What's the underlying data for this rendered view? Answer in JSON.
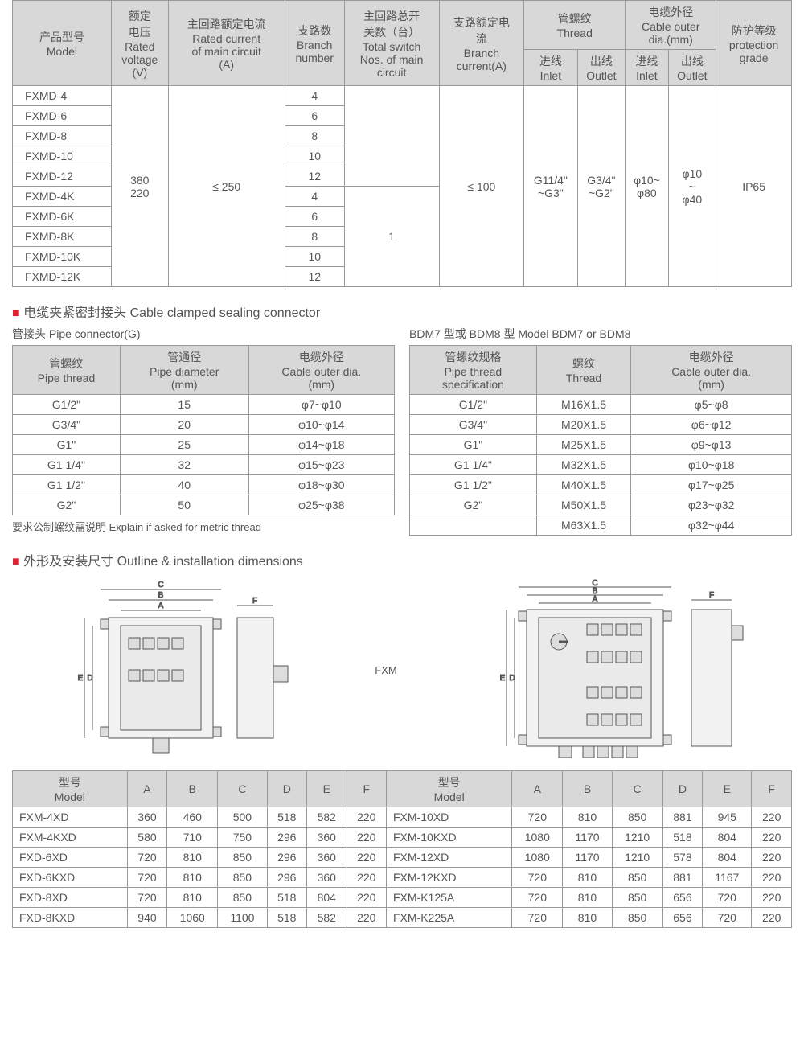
{
  "table1": {
    "headers": {
      "model": "产品型号\nModel",
      "voltage": "额定\n电压\nRated\nvoltage\n(V)",
      "main_current": "主回路额定电流\nRated current\nof main circuit\n(A)",
      "branch_num": "支路数\nBranch\nnumber",
      "total_switch": "主回路总开\n关数（台）\nTotal switch\nNos. of main\ncircuit",
      "branch_current": "支路额定电\n流\nBranch\ncurrent(A)",
      "thread": "管螺纹\nThread",
      "thread_inlet": "进线\nInlet",
      "thread_outlet": "出线\nOutlet",
      "cable": "电缆外径\nCable outer\ndia.(mm)",
      "cable_inlet": "进线\nInlet",
      "cable_outlet": "出线\nOutlet",
      "protection": "防护等级\nprotection\ngrade"
    },
    "models": [
      "FXMD-4",
      "FXMD-6",
      "FXMD-8",
      "FXMD-10",
      "FXMD-12",
      "FXMD-4K",
      "FXMD-6K",
      "FXMD-8K",
      "FXMD-10K",
      "FXMD-12K"
    ],
    "branches": [
      "4",
      "6",
      "8",
      "10",
      "12",
      "4",
      "6",
      "8",
      "10",
      "12"
    ],
    "voltage": "380\n220",
    "main_current": "≤ 250",
    "branch_current": "≤ 100",
    "thread_inlet": "G11/4\"\n~G3\"",
    "thread_outlet": "G3/4\"\n~G2\"",
    "cable_inlet": "φ10~\nφ80",
    "cable_outlet": "φ10\n~\nφ40",
    "protection": "IP65",
    "total_switch": "1"
  },
  "section_cable": "电缆夹紧密封接头 Cable clamped sealing connector",
  "pipe_title": "管接头 Pipe connector(G)",
  "bdm_title": "BDM7 型或 BDM8 型   Model BDM7 or BDM8",
  "pipe": {
    "h1": "管螺纹\nPipe thread",
    "h2": "管通径\nPipe diameter\n(mm)",
    "h3": "电缆外径\nCable outer dia.\n(mm)",
    "rows": [
      [
        "G1/2\"",
        "15",
        "φ7~φ10"
      ],
      [
        "G3/4\"",
        "20",
        "φ10~φ14"
      ],
      [
        "G1\"",
        "25",
        "φ14~φ18"
      ],
      [
        "G1 1/4\"",
        "32",
        "φ15~φ23"
      ],
      [
        "G1 1/2\"",
        "40",
        "φ18~φ30"
      ],
      [
        "G2\"",
        "50",
        "φ25~φ38"
      ]
    ]
  },
  "bdm": {
    "h1": "管螺纹规格\nPipe thread\nspecification",
    "h2": "螺纹\nThread",
    "h3": "电缆外径\nCable outer dia.\n(mm)",
    "rows": [
      [
        "G1/2\"",
        "M16X1.5",
        "φ5~φ8"
      ],
      [
        "G3/4\"",
        "M20X1.5",
        "φ6~φ12"
      ],
      [
        "G1\"",
        "M25X1.5",
        "φ9~φ13"
      ],
      [
        "G1 1/4\"",
        "M32X1.5",
        "φ10~φ18"
      ],
      [
        "G1 1/2\"",
        "M40X1.5",
        "φ17~φ25"
      ],
      [
        "G2\"",
        "M50X1.5",
        "φ23~φ32"
      ],
      [
        "",
        "M63X1.5",
        "φ32~φ44"
      ]
    ]
  },
  "note_metric": "要求公制螺纹需说明 Explain if asked for metric thread",
  "section_dim": "外形及安装尺寸 Outline & installation dimensions",
  "diagram_label": "FXM",
  "dims": {
    "h_model": "型号\nModel",
    "hA": "A",
    "hB": "B",
    "hC": "C",
    "hD": "D",
    "hE": "E",
    "hF": "F",
    "left": [
      [
        "FXM-4XD",
        "360",
        "460",
        "500",
        "518",
        "582",
        "220"
      ],
      [
        "FXM-4KXD",
        "580",
        "710",
        "750",
        "296",
        "360",
        "220"
      ],
      [
        "FXD-6XD",
        "720",
        "810",
        "850",
        "296",
        "360",
        "220"
      ],
      [
        "FXD-6KXD",
        "720",
        "810",
        "850",
        "296",
        "360",
        "220"
      ],
      [
        "FXD-8XD",
        "720",
        "810",
        "850",
        "518",
        "804",
        "220"
      ],
      [
        "FXD-8KXD",
        "940",
        "1060",
        "1100",
        "518",
        "582",
        "220"
      ]
    ],
    "right": [
      [
        "FXM-10XD",
        "720",
        "810",
        "850",
        "881",
        "945",
        "220"
      ],
      [
        "FXM-10KXD",
        "1080",
        "1170",
        "1210",
        "518",
        "804",
        "220"
      ],
      [
        "FXM-12XD",
        "1080",
        "1170",
        "1210",
        "578",
        "804",
        "220"
      ],
      [
        "FXM-12KXD",
        "720",
        "810",
        "850",
        "881",
        "1167",
        "220"
      ],
      [
        "FXM-K125A",
        "720",
        "810",
        "850",
        "656",
        "720",
        "220"
      ],
      [
        "FXM-K225A",
        "720",
        "810",
        "850",
        "656",
        "720",
        "220"
      ]
    ]
  },
  "colors": {
    "header_bg": "#d8d8d8",
    "border": "#999999",
    "text": "#555555",
    "accent": "#d02235"
  }
}
